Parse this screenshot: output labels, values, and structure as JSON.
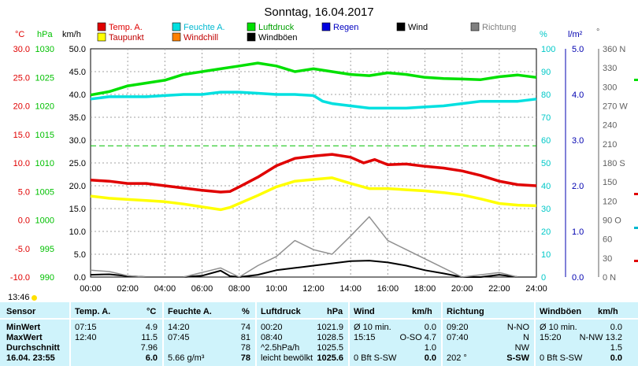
{
  "title": "Sonntag, 16.04.2017",
  "legend": [
    {
      "label": "Temp. A.",
      "color": "#e00000"
    },
    {
      "label": "Feuchte A.",
      "color": "#00e0e0"
    },
    {
      "label": "Luftdruck",
      "color": "#00e000"
    },
    {
      "label": "Regen",
      "color": "#0000e0"
    },
    {
      "label": "Wind",
      "color": "#000000"
    },
    {
      "label": "Richtung",
      "color": "#808080"
    },
    {
      "label": "Taupunkt",
      "color": "#ffff00"
    },
    {
      "label": "Windchill",
      "color": "#ff8000"
    },
    {
      "label": "Windböen",
      "color": "#000000"
    }
  ],
  "axes": {
    "temp": {
      "unit": "°C",
      "ticks": [
        "30.0",
        "25.0",
        "20.0",
        "15.0",
        "10.0",
        "5.0",
        "0.0",
        "-5.0",
        "-10.0"
      ],
      "color": "#e00000"
    },
    "press": {
      "unit": "hPa",
      "ticks": [
        "1030",
        "1025",
        "1020",
        "1015",
        "1010",
        "1005",
        "1000",
        "995",
        "990"
      ],
      "color": "#00c000"
    },
    "wind": {
      "unit": "km/h",
      "ticks": [
        "50.0",
        "45.0",
        "40.0",
        "35.0",
        "30.0",
        "25.0",
        "20.0",
        "15.0",
        "10.0",
        "5.0",
        "0.0"
      ],
      "color": "#000000"
    },
    "hum": {
      "unit": "%",
      "ticks": [
        "100",
        "90",
        "80",
        "70",
        "60",
        "50",
        "40",
        "30",
        "20",
        "10",
        "0"
      ],
      "color": "#00c8c8"
    },
    "rain": {
      "unit": "l/m²",
      "ticks": [
        "5.0",
        "4.0",
        "3.0",
        "2.0",
        "1.0",
        "0.0"
      ],
      "color": "#0000b0"
    },
    "dir": {
      "unit": "°",
      "ticks": [
        "360 N",
        "330",
        "300",
        "270 W",
        "240",
        "210",
        "180 S",
        "150",
        "120",
        "90 O",
        "60",
        "30",
        "0   N"
      ],
      "color": "#606060"
    },
    "x": {
      "ticks": [
        "00:00",
        "02:00",
        "04:00",
        "06:00",
        "08:00",
        "10:00",
        "12:00",
        "14:00",
        "16:00",
        "18:00",
        "20:00",
        "22:00",
        "24:00"
      ]
    },
    "sunrise_label": "13:46"
  },
  "chart_data": {
    "type": "line",
    "title": "Sonntag, 16.04.2017",
    "x_unit": "hours",
    "xlim": [
      0,
      24
    ],
    "series": [
      {
        "name": "Temp. A.",
        "unit": "°C",
        "ylim": [
          -10,
          30
        ],
        "color": "#e00000",
        "points": [
          [
            0,
            7.0
          ],
          [
            1,
            6.8
          ],
          [
            2,
            6.4
          ],
          [
            3,
            6.4
          ],
          [
            4,
            6.0
          ],
          [
            5,
            5.6
          ],
          [
            6,
            5.2
          ],
          [
            7,
            4.9
          ],
          [
            7.5,
            5.0
          ],
          [
            8,
            5.8
          ],
          [
            9,
            7.5
          ],
          [
            10,
            9.5
          ],
          [
            11,
            10.8
          ],
          [
            12,
            11.2
          ],
          [
            13,
            11.5
          ],
          [
            14,
            11.0
          ],
          [
            14.7,
            10.0
          ],
          [
            15.3,
            10.6
          ],
          [
            16,
            9.7
          ],
          [
            17,
            9.8
          ],
          [
            18,
            9.4
          ],
          [
            19,
            9.1
          ],
          [
            20,
            8.6
          ],
          [
            21,
            7.8
          ],
          [
            22,
            6.8
          ],
          [
            23,
            6.2
          ],
          [
            24,
            6.0
          ]
        ]
      },
      {
        "name": "Taupunkt",
        "unit": "°C",
        "ylim": [
          -10,
          30
        ],
        "color": "#ffff00",
        "points": [
          [
            0,
            4.2
          ],
          [
            1,
            3.8
          ],
          [
            2,
            3.6
          ],
          [
            3,
            3.4
          ],
          [
            4,
            3.2
          ],
          [
            5,
            2.8
          ],
          [
            6,
            2.3
          ],
          [
            7,
            1.8
          ],
          [
            7.5,
            2.2
          ],
          [
            8,
            2.9
          ],
          [
            9,
            4.3
          ],
          [
            10,
            5.8
          ],
          [
            11,
            6.8
          ],
          [
            12,
            7.1
          ],
          [
            13,
            7.4
          ],
          [
            14,
            6.4
          ],
          [
            15,
            5.5
          ],
          [
            16,
            5.5
          ],
          [
            17,
            5.3
          ],
          [
            18,
            5.1
          ],
          [
            19,
            4.8
          ],
          [
            20,
            4.4
          ],
          [
            21,
            3.7
          ],
          [
            22,
            2.9
          ],
          [
            23,
            2.6
          ],
          [
            24,
            2.5
          ]
        ]
      },
      {
        "name": "Feuchte A.",
        "unit": "%",
        "ylim": [
          0,
          100
        ],
        "color": "#00e0e0",
        "points": [
          [
            0,
            78
          ],
          [
            1,
            79
          ],
          [
            2,
            79
          ],
          [
            3,
            79
          ],
          [
            4,
            79.5
          ],
          [
            5,
            80
          ],
          [
            6,
            80
          ],
          [
            7,
            81
          ],
          [
            8,
            81
          ],
          [
            9,
            80.5
          ],
          [
            10,
            80
          ],
          [
            11,
            80
          ],
          [
            12,
            79.5
          ],
          [
            12.5,
            77
          ],
          [
            13,
            76
          ],
          [
            14,
            75
          ],
          [
            15,
            74
          ],
          [
            16,
            74
          ],
          [
            17,
            74
          ],
          [
            18,
            74.5
          ],
          [
            19,
            75
          ],
          [
            20,
            76
          ],
          [
            21,
            77
          ],
          [
            22,
            77
          ],
          [
            23,
            77
          ],
          [
            24,
            78
          ]
        ]
      },
      {
        "name": "Luftdruck",
        "unit": "hPa",
        "ylim": [
          990,
          1030
        ],
        "color": "#00e000",
        "points": [
          [
            0,
            1021.9
          ],
          [
            1,
            1022.5
          ],
          [
            2,
            1023.5
          ],
          [
            3,
            1024.0
          ],
          [
            4,
            1024.5
          ],
          [
            5,
            1025.5
          ],
          [
            6,
            1026.0
          ],
          [
            7,
            1026.5
          ],
          [
            8,
            1027.0
          ],
          [
            9,
            1027.5
          ],
          [
            10,
            1027.0
          ],
          [
            11,
            1026.0
          ],
          [
            12,
            1026.5
          ],
          [
            13,
            1026.0
          ],
          [
            14,
            1025.5
          ],
          [
            15,
            1025.3
          ],
          [
            16,
            1025.8
          ],
          [
            17,
            1025.5
          ],
          [
            18,
            1025.0
          ],
          [
            19,
            1024.8
          ],
          [
            20,
            1024.7
          ],
          [
            21,
            1024.6
          ],
          [
            22,
            1025.1
          ],
          [
            23,
            1025.4
          ],
          [
            24,
            1025.0
          ]
        ]
      },
      {
        "name": "Wind",
        "unit": "km/h",
        "ylim": [
          0,
          50
        ],
        "color": "#000000",
        "points": [
          [
            0,
            0.5
          ],
          [
            1,
            0.6
          ],
          [
            2,
            0.2
          ],
          [
            3,
            0
          ],
          [
            4,
            0
          ],
          [
            5,
            0
          ],
          [
            6,
            0.3
          ],
          [
            7,
            1.4
          ],
          [
            7.5,
            0.2
          ],
          [
            8,
            0
          ],
          [
            9,
            0.5
          ],
          [
            10,
            1.5
          ],
          [
            11,
            2.0
          ],
          [
            12,
            2.5
          ],
          [
            13,
            3.0
          ],
          [
            14,
            3.5
          ],
          [
            15,
            3.6
          ],
          [
            16,
            3.2
          ],
          [
            17,
            2.5
          ],
          [
            18,
            1.5
          ],
          [
            19,
            0.8
          ],
          [
            20,
            0
          ],
          [
            21,
            0
          ],
          [
            22,
            0.5
          ],
          [
            23,
            0
          ],
          [
            24,
            0
          ]
        ]
      },
      {
        "name": "Windböen",
        "unit": "km/h",
        "ylim": [
          0,
          50
        ],
        "color": "#909090",
        "points": [
          [
            0,
            1.5
          ],
          [
            1,
            1.2
          ],
          [
            2,
            0.3
          ],
          [
            3,
            0
          ],
          [
            4,
            0
          ],
          [
            5,
            0
          ],
          [
            6,
            1.0
          ],
          [
            7,
            2.0
          ],
          [
            8,
            0
          ],
          [
            9,
            2.5
          ],
          [
            10,
            4.5
          ],
          [
            11,
            8.0
          ],
          [
            12,
            6.0
          ],
          [
            13,
            5.0
          ],
          [
            14,
            9.0
          ],
          [
            15,
            13.2
          ],
          [
            16,
            8.0
          ],
          [
            17,
            6.0
          ],
          [
            18,
            4.0
          ],
          [
            19,
            2.0
          ],
          [
            20,
            0
          ],
          [
            21,
            0.5
          ],
          [
            22,
            1.0
          ],
          [
            23,
            0
          ],
          [
            24,
            0
          ]
        ]
      }
    ]
  },
  "table": {
    "headers": {
      "sensor": "Sensor",
      "temp": "Temp. A.",
      "temp_u": "°C",
      "hum": "Feuchte A.",
      "hum_u": "%",
      "press": "Luftdruck",
      "press_u": "hPa",
      "wind": "Wind",
      "wind_u": "km/h",
      "dir": "Richtung",
      "gust": "Windböen",
      "gust_u": "km/h"
    },
    "rows": [
      {
        "label": "MinWert",
        "t_time": "07:15",
        "t_val": "4.9",
        "h_time": "14:20",
        "h_val": "74",
        "p_time": "00:20",
        "p_val": "1021.9",
        "w_time": "Ø 10 min.",
        "w_val": "0.0",
        "d_time": "09:20",
        "d_val": "N-NO",
        "g_time": "Ø 10 min.",
        "g_val": "0.0"
      },
      {
        "label": "MaxWert",
        "t_time": "12:40",
        "t_val": "11.5",
        "h_time": "07:45",
        "h_val": "81",
        "p_time": "08:40",
        "p_val": "1028.5",
        "w_time": "15:15",
        "w_val": "O-SO 4.7",
        "d_time": "07:40",
        "d_val": "N",
        "g_time": "15:20",
        "g_val": "N-NW 13.2"
      },
      {
        "label": "Durchschnitt",
        "t_time": "",
        "t_val": "7.96",
        "h_time": "",
        "h_val": "78",
        "p_time": "^2.5hPa/h",
        "p_val": "1025.5",
        "w_time": "",
        "w_val": "1.0",
        "d_time": "",
        "d_val": "NW",
        "g_time": "",
        "g_val": "1.5"
      },
      {
        "label": "16.04. 23:55",
        "t_time": "",
        "t_val": "6.0",
        "h_time": "5.66 g/m³",
        "h_val": "78",
        "p_time": "leicht bewölkt",
        "p_val": "1025.6",
        "w_time": "0 Bft S-SW",
        "w_val": "0.0",
        "d_time": "202 °",
        "d_val": "S-SW",
        "g_time": "0 Bft S-SW",
        "g_val": "0.0"
      }
    ]
  }
}
